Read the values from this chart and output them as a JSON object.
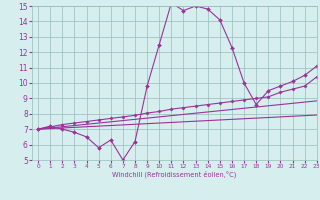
{
  "x_hours": [
    0,
    1,
    2,
    3,
    4,
    5,
    6,
    7,
    8,
    9,
    10,
    11,
    12,
    13,
    14,
    15,
    16,
    17,
    18,
    19,
    20,
    21,
    22,
    23
  ],
  "temp_line": [
    7.0,
    7.2,
    7.0,
    6.8,
    6.5,
    5.8,
    6.3,
    5.0,
    6.2,
    9.8,
    12.5,
    15.2,
    14.7,
    15.0,
    14.8,
    14.1,
    12.3,
    10.0,
    8.6,
    9.5,
    9.8,
    10.1,
    10.5,
    11.1
  ],
  "upper_line": [
    7.0,
    7.15,
    7.3,
    7.4,
    7.5,
    7.6,
    7.7,
    7.8,
    7.9,
    8.05,
    8.15,
    8.3,
    8.4,
    8.5,
    8.6,
    8.7,
    8.8,
    8.9,
    9.0,
    9.1,
    9.4,
    9.6,
    9.8,
    10.4
  ],
  "middle_line": [
    7.0,
    7.08,
    7.16,
    7.24,
    7.32,
    7.4,
    7.48,
    7.56,
    7.64,
    7.72,
    7.8,
    7.88,
    7.96,
    8.04,
    8.12,
    8.2,
    8.28,
    8.36,
    8.44,
    8.52,
    8.6,
    8.68,
    8.76,
    8.84
  ],
  "lower_line": [
    7.0,
    7.04,
    7.08,
    7.12,
    7.16,
    7.2,
    7.24,
    7.28,
    7.32,
    7.36,
    7.4,
    7.44,
    7.48,
    7.52,
    7.56,
    7.6,
    7.64,
    7.68,
    7.72,
    7.76,
    7.8,
    7.84,
    7.88,
    7.92
  ],
  "color": "#993399",
  "bg_color": "#d6eeee",
  "grid_color": "#99bbbb",
  "xlabel": "Windchill (Refroidissement éolien,°C)",
  "ylim": [
    5,
    15
  ],
  "xlim": [
    -0.5,
    23
  ],
  "yticks": [
    5,
    6,
    7,
    8,
    9,
    10,
    11,
    12,
    13,
    14,
    15
  ],
  "xticks": [
    0,
    1,
    2,
    3,
    4,
    5,
    6,
    7,
    8,
    9,
    10,
    11,
    12,
    13,
    14,
    15,
    16,
    17,
    18,
    19,
    20,
    21,
    22,
    23
  ],
  "marker": "D",
  "markersize": 2.0,
  "linewidth": 0.8
}
